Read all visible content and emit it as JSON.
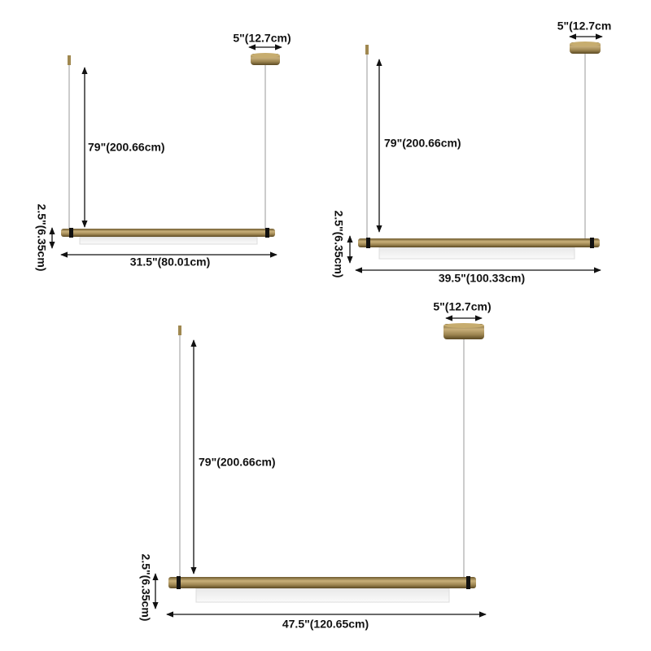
{
  "diagrams": [
    {
      "canopy_width": "5\"(12.7cm)",
      "drop": "79\"(200.66cm)",
      "height": "2.5\"(6.35cm)",
      "length": "31.5\"(80.01cm)"
    },
    {
      "canopy_width": "5\"(12.7cm",
      "drop": "79\"(200.66cm)",
      "height": "2.5\"(6.35cm)",
      "length": "39.5\"(100.33cm)"
    },
    {
      "canopy_width": "5\"(12.7cm)",
      "drop": "79\"(200.66cm)",
      "height": "2.5\"(6.35cm)",
      "length": "47.5\"(120.65cm)"
    }
  ]
}
